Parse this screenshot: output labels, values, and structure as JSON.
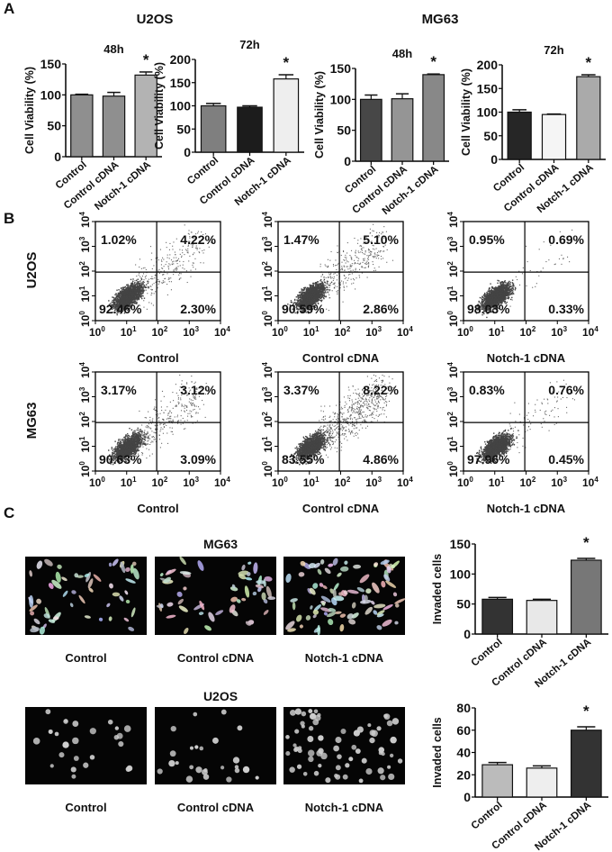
{
  "panels": {
    "a": "A",
    "b": "B",
    "c": "C"
  },
  "chart_data": [
    {
      "type": "bar",
      "panel": "A",
      "group": "U2OS",
      "title": "48h",
      "ylabel": "Cell  Viability (%)",
      "ylim": [
        0,
        150
      ],
      "yticks": [
        0,
        50,
        100,
        150
      ],
      "categories": [
        "Control",
        "Control cDNA",
        "Notch-1 cDNA"
      ],
      "values": [
        100,
        98,
        132
      ],
      "errors": [
        1,
        6,
        5
      ],
      "significant": [
        false,
        false,
        true
      ],
      "colors": [
        "#8f8f8f",
        "#8f8f8f",
        "#b3b3b3"
      ]
    },
    {
      "type": "bar",
      "panel": "A",
      "group": "U2OS",
      "title": "72h",
      "ylabel": "Cell  Viability (%)",
      "ylim": [
        0,
        200
      ],
      "yticks": [
        0,
        50,
        100,
        150,
        200
      ],
      "categories": [
        "Control",
        "Control cDNA",
        "Notch-1 cDNA"
      ],
      "values": [
        100,
        97,
        158
      ],
      "errors": [
        5,
        3,
        9
      ],
      "significant": [
        false,
        false,
        true
      ],
      "colors": [
        "#7f7f7f",
        "#1c1c1c",
        "#eeeeee"
      ]
    },
    {
      "type": "bar",
      "panel": "A",
      "group": "MG63",
      "title": "48h",
      "ylabel": "Cell  Viability (%)",
      "ylim": [
        0,
        150
      ],
      "yticks": [
        0,
        50,
        100,
        150
      ],
      "categories": [
        "Control",
        "Control cDNA",
        "Notch-1 cDNA"
      ],
      "values": [
        100,
        101,
        140
      ],
      "errors": [
        7,
        8,
        1
      ],
      "significant": [
        false,
        false,
        true
      ],
      "colors": [
        "#474747",
        "#959595",
        "#888888"
      ]
    },
    {
      "type": "bar",
      "panel": "A",
      "group": "MG63",
      "title": "72h",
      "ylabel": "Cell  Viability (%)",
      "ylim": [
        0,
        200
      ],
      "yticks": [
        0,
        50,
        100,
        150,
        200
      ],
      "categories": [
        "Control",
        "Control cDNA",
        "Notch-1 cDNA"
      ],
      "values": [
        100,
        95,
        175
      ],
      "errors": [
        5,
        1,
        4
      ],
      "significant": [
        false,
        false,
        true
      ],
      "colors": [
        "#262626",
        "#f5f5f5",
        "#aaaaaa"
      ]
    },
    {
      "type": "scatter",
      "panel": "B",
      "cell_line": "U2OS",
      "condition": "Control",
      "quadrants": {
        "ul": "1.02%",
        "ur": "4.22%",
        "ll": "92.46%",
        "lr": "2.30%"
      }
    },
    {
      "type": "scatter",
      "panel": "B",
      "cell_line": "U2OS",
      "condition": "Control cDNA",
      "quadrants": {
        "ul": "1.47%",
        "ur": "5.10%",
        "ll": "90.59%",
        "lr": "2.86%"
      }
    },
    {
      "type": "scatter",
      "panel": "B",
      "cell_line": "U2OS",
      "condition": "Notch-1 cDNA",
      "quadrants": {
        "ul": "0.95%",
        "ur": "0.69%",
        "ll": "98.03%",
        "lr": "0.33%"
      }
    },
    {
      "type": "scatter",
      "panel": "B",
      "cell_line": "MG63",
      "condition": "Control",
      "quadrants": {
        "ul": "3.17%",
        "ur": "3.12%",
        "ll": "90.63%",
        "lr": "3.09%"
      }
    },
    {
      "type": "scatter",
      "panel": "B",
      "cell_line": "MG63",
      "condition": "Control cDNA",
      "quadrants": {
        "ul": "3.37%",
        "ur": "8.22%",
        "ll": "83.55%",
        "lr": "4.86%"
      }
    },
    {
      "type": "scatter",
      "panel": "B",
      "cell_line": "MG63",
      "condition": "Notch-1 cDNA",
      "quadrants": {
        "ul": "0.83%",
        "ur": "0.76%",
        "ll": "97.96%",
        "lr": "0.45%"
      }
    },
    {
      "type": "bar",
      "panel": "C",
      "group": "MG63",
      "title": "",
      "ylabel": "Invaded cells",
      "ylim": [
        0,
        150
      ],
      "yticks": [
        0,
        50,
        100,
        150
      ],
      "categories": [
        "Control",
        "Control cDNA",
        "Notch-1 cDNA"
      ],
      "values": [
        58,
        56,
        123
      ],
      "errors": [
        3,
        2,
        3
      ],
      "significant": [
        false,
        false,
        true
      ],
      "colors": [
        "#333333",
        "#e8e8e8",
        "#777777"
      ]
    },
    {
      "type": "bar",
      "panel": "C",
      "group": "U2OS",
      "title": "",
      "ylabel": "Invaded cells",
      "ylim": [
        0,
        80
      ],
      "yticks": [
        0,
        20,
        40,
        60,
        80
      ],
      "categories": [
        "Control",
        "Control cDNA",
        "Notch-1 cDNA"
      ],
      "values": [
        29,
        26,
        60
      ],
      "errors": [
        2,
        2,
        3
      ],
      "significant": [
        false,
        false,
        true
      ],
      "colors": [
        "#bbbbbb",
        "#eeeeee",
        "#333333"
      ]
    }
  ],
  "flow_axis_ticks": [
    "10",
    "0",
    "1",
    "2",
    "3",
    "4"
  ],
  "group_titles": {
    "u2os": "U2OS",
    "mg63": "MG63"
  },
  "star": "*",
  "micrographs": {
    "labels": [
      "Control",
      "Control cDNA",
      "Notch-1 cDNA"
    ]
  }
}
